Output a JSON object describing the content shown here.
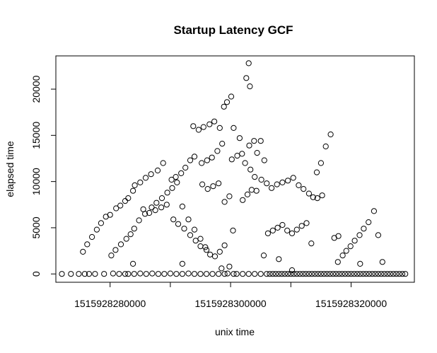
{
  "chart_data": {
    "type": "scatter",
    "title": "Startup Latency GCF",
    "xlabel": "unix time",
    "ylabel": "elapsed time",
    "xlim": [
      1515928271000,
      1515928330500
    ],
    "ylim": [
      -900,
      23600
    ],
    "x_ticks": [
      1515928280000,
      1515928290000,
      1515928300000,
      1515928310000,
      1515928320000
    ],
    "x_tick_labels": [
      "1515928280000",
      "",
      "1515928300000",
      "",
      "1515928320000"
    ],
    "y_ticks": [
      0,
      5000,
      10000,
      15000,
      20000
    ],
    "y_tick_labels": [
      "0",
      "5000",
      "10000",
      "15000",
      "20000"
    ],
    "marker": "open-circle",
    "grid": false,
    "series": [
      {
        "points": [
          [
            1515928272000,
            0
          ],
          [
            1515928273500,
            0
          ],
          [
            1515928274800,
            0
          ],
          [
            1515928275800,
            0
          ],
          [
            1515928276500,
            0
          ],
          [
            1515928277500,
            0
          ],
          [
            1515928279000,
            0
          ],
          [
            1515928280500,
            50
          ],
          [
            1515928281500,
            0
          ],
          [
            1515928282500,
            0
          ],
          [
            1515928283000,
            0
          ],
          [
            1515928284000,
            0
          ],
          [
            1515928285000,
            50
          ],
          [
            1515928286000,
            0
          ],
          [
            1515928287000,
            50
          ],
          [
            1515928288000,
            0
          ],
          [
            1515928289000,
            0
          ],
          [
            1515928290000,
            50
          ],
          [
            1515928291000,
            0
          ],
          [
            1515928292000,
            0
          ],
          [
            1515928293000,
            50
          ],
          [
            1515928294000,
            0
          ],
          [
            1515928295000,
            0
          ],
          [
            1515928296000,
            0
          ],
          [
            1515928297000,
            0
          ],
          [
            1515928298000,
            0
          ],
          [
            1515928299000,
            0
          ],
          [
            1515928299500,
            50
          ],
          [
            1515928300500,
            0
          ],
          [
            1515928301000,
            0
          ],
          [
            1515928302000,
            0
          ],
          [
            1515928303000,
            0
          ],
          [
            1515928304000,
            0
          ],
          [
            1515928305000,
            0
          ],
          [
            1515928306000,
            0
          ],
          [
            1515928306500,
            0
          ],
          [
            1515928307000,
            0
          ],
          [
            1515928307500,
            0
          ],
          [
            1515928308000,
            0
          ],
          [
            1515928308500,
            0
          ],
          [
            1515928309000,
            0
          ],
          [
            1515928309500,
            0
          ],
          [
            1515928310000,
            0
          ],
          [
            1515928310500,
            0
          ],
          [
            1515928311000,
            0
          ],
          [
            1515928311500,
            0
          ],
          [
            1515928312000,
            0
          ],
          [
            1515928312500,
            0
          ],
          [
            1515928313000,
            0
          ],
          [
            1515928313500,
            0
          ],
          [
            1515928314000,
            0
          ],
          [
            1515928314500,
            0
          ],
          [
            1515928315000,
            0
          ],
          [
            1515928315500,
            0
          ],
          [
            1515928316000,
            0
          ],
          [
            1515928316500,
            0
          ],
          [
            1515928317000,
            0
          ],
          [
            1515928317500,
            0
          ],
          [
            1515928318000,
            0
          ],
          [
            1515928318500,
            0
          ],
          [
            1515928319000,
            0
          ],
          [
            1515928319500,
            0
          ],
          [
            1515928320000,
            0
          ],
          [
            1515928320500,
            0
          ],
          [
            1515928321000,
            0
          ],
          [
            1515928321500,
            0
          ],
          [
            1515928322000,
            0
          ],
          [
            1515928322500,
            0
          ],
          [
            1515928323000,
            0
          ],
          [
            1515928323500,
            0
          ],
          [
            1515928324000,
            0
          ],
          [
            1515928324500,
            0
          ],
          [
            1515928325000,
            0
          ],
          [
            1515928325500,
            0
          ],
          [
            1515928326000,
            0
          ],
          [
            1515928326500,
            0
          ],
          [
            1515928327000,
            0
          ],
          [
            1515928327500,
            0
          ],
          [
            1515928328000,
            0
          ],
          [
            1515928328500,
            0
          ],
          [
            1515928329000,
            0
          ],
          [
            1515928310200,
            400
          ],
          [
            1515928298500,
            600
          ],
          [
            1515928283800,
            1100
          ],
          [
            1515928292000,
            1100
          ],
          [
            1515928321500,
            1100
          ],
          [
            1515928317800,
            1300
          ],
          [
            1515928308000,
            1600
          ],
          [
            1515928305500,
            2000
          ],
          [
            1515928299800,
            800
          ],
          [
            1515928275500,
            2400
          ],
          [
            1515928276200,
            3200
          ],
          [
            1515928277000,
            4000
          ],
          [
            1515928277800,
            4800
          ],
          [
            1515928278500,
            5500
          ],
          [
            1515928279300,
            6200
          ],
          [
            1515928280000,
            6400
          ],
          [
            1515928281000,
            7100
          ],
          [
            1515928281700,
            7400
          ],
          [
            1515928282500,
            7900
          ],
          [
            1515928283000,
            8200
          ],
          [
            1515928283800,
            9000
          ],
          [
            1515928284100,
            9600
          ],
          [
            1515928285000,
            9900
          ],
          [
            1515928285900,
            10400
          ],
          [
            1515928286800,
            10800
          ],
          [
            1515928287900,
            11200
          ],
          [
            1515928288800,
            12000
          ],
          [
            1515928290200,
            10200
          ],
          [
            1515928290900,
            10500
          ],
          [
            1515928291800,
            10900
          ],
          [
            1515928292500,
            11500
          ],
          [
            1515928293300,
            12300
          ],
          [
            1515928294000,
            12700
          ],
          [
            1515928295200,
            12000
          ],
          [
            1515928296100,
            12300
          ],
          [
            1515928296900,
            12600
          ],
          [
            1515928297800,
            13300
          ],
          [
            1515928298600,
            14100
          ],
          [
            1515928300200,
            12400
          ],
          [
            1515928301100,
            12800
          ],
          [
            1515928301900,
            13000
          ],
          [
            1515928303100,
            13900
          ],
          [
            1515928303900,
            14400
          ],
          [
            1515928280200,
            2000
          ],
          [
            1515928280900,
            2600
          ],
          [
            1515928281800,
            3200
          ],
          [
            1515928282700,
            3800
          ],
          [
            1515928283400,
            4300
          ],
          [
            1515928284000,
            4900
          ],
          [
            1515928284800,
            5800
          ],
          [
            1515928285800,
            6500
          ],
          [
            1515928286900,
            7200
          ],
          [
            1515928287700,
            7700
          ],
          [
            1515928288600,
            8200
          ],
          [
            1515928289500,
            8800
          ],
          [
            1515928290300,
            9300
          ],
          [
            1515928291100,
            9900
          ],
          [
            1515928292000,
            7300
          ],
          [
            1515928293000,
            5900
          ],
          [
            1515928294000,
            4800
          ],
          [
            1515928295000,
            3800
          ],
          [
            1515928295800,
            2900
          ],
          [
            1515928296600,
            2100
          ],
          [
            1515928297400,
            1900
          ],
          [
            1515928298200,
            2400
          ],
          [
            1515928299000,
            3100
          ],
          [
            1515928285500,
            7000
          ],
          [
            1515928286500,
            6600
          ],
          [
            1515928287500,
            6900
          ],
          [
            1515928288500,
            7200
          ],
          [
            1515928289400,
            7500
          ],
          [
            1515928290500,
            5900
          ],
          [
            1515928291300,
            5400
          ],
          [
            1515928292300,
            4900
          ],
          [
            1515928293300,
            4200
          ],
          [
            1515928294200,
            3600
          ],
          [
            1515928295000,
            3000
          ],
          [
            1515928296000,
            2600
          ],
          [
            1515928293800,
            16000
          ],
          [
            1515928294700,
            15600
          ],
          [
            1515928295500,
            15900
          ],
          [
            1515928296500,
            16200
          ],
          [
            1515928297300,
            16500
          ],
          [
            1515928298200,
            15800
          ],
          [
            1515928298900,
            18100
          ],
          [
            1515928299400,
            18600
          ],
          [
            1515928300100,
            19200
          ],
          [
            1515928300500,
            15800
          ],
          [
            1515928301500,
            14700
          ],
          [
            1515928302400,
            12000
          ],
          [
            1515928303300,
            11300
          ],
          [
            1515928304000,
            10500
          ],
          [
            1515928305100,
            10200
          ],
          [
            1515928306000,
            9800
          ],
          [
            1515928306800,
            9300
          ],
          [
            1515928307700,
            9700
          ],
          [
            1515928308600,
            9900
          ],
          [
            1515928309500,
            10100
          ],
          [
            1515928310400,
            10400
          ],
          [
            1515928311300,
            9600
          ],
          [
            1515928312100,
            9200
          ],
          [
            1515928313000,
            8700
          ],
          [
            1515928313700,
            8300
          ],
          [
            1515928314400,
            8200
          ],
          [
            1515928315200,
            8500
          ],
          [
            1515928295300,
            9700
          ],
          [
            1515928296200,
            9200
          ],
          [
            1515928297100,
            9500
          ],
          [
            1515928298000,
            9800
          ],
          [
            1515928299000,
            7800
          ],
          [
            1515928299800,
            8400
          ],
          [
            1515928300400,
            4700
          ],
          [
            1515928302000,
            8000
          ],
          [
            1515928302800,
            8600
          ],
          [
            1515928303500,
            9100
          ],
          [
            1515928304300,
            9000
          ],
          [
            1515928302600,
            21200
          ],
          [
            1515928303000,
            22800
          ],
          [
            1515928303200,
            20300
          ],
          [
            1515928304400,
            13100
          ],
          [
            1515928305000,
            14400
          ],
          [
            1515928305600,
            12300
          ],
          [
            1515928306200,
            4400
          ],
          [
            1515928307000,
            4700
          ],
          [
            1515928307800,
            5000
          ],
          [
            1515928308600,
            5300
          ],
          [
            1515928309400,
            4700
          ],
          [
            1515928310200,
            4400
          ],
          [
            1515928311000,
            4800
          ],
          [
            1515928311800,
            5200
          ],
          [
            1515928312600,
            5500
          ],
          [
            1515928313400,
            3300
          ],
          [
            1515928314300,
            11000
          ],
          [
            1515928315000,
            12000
          ],
          [
            1515928315800,
            13800
          ],
          [
            1515928316600,
            15100
          ],
          [
            1515928317200,
            3900
          ],
          [
            1515928317900,
            4100
          ],
          [
            1515928318600,
            2000
          ],
          [
            1515928319200,
            2500
          ],
          [
            1515928319900,
            3000
          ],
          [
            1515928320600,
            3600
          ],
          [
            1515928321400,
            4200
          ],
          [
            1515928322100,
            4900
          ],
          [
            1515928322900,
            5600
          ],
          [
            1515928323800,
            6800
          ],
          [
            1515928324500,
            4200
          ],
          [
            1515928325200,
            1300
          ]
        ]
      }
    ]
  }
}
